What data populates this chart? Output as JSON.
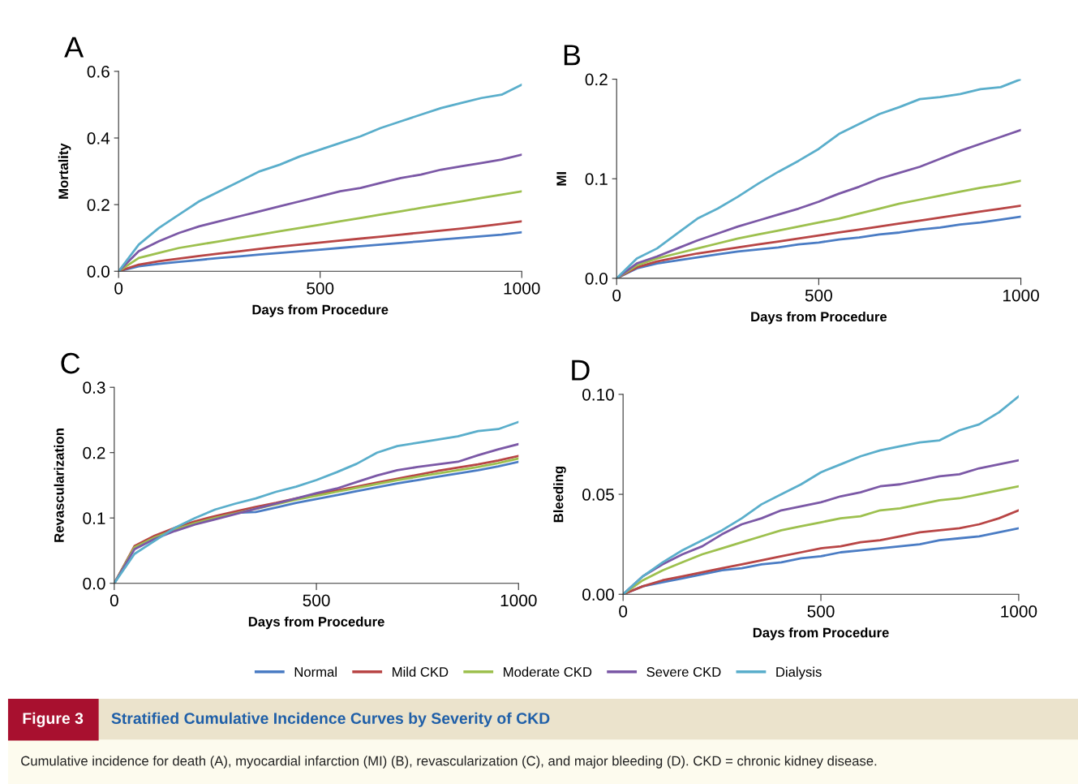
{
  "chart_data": [
    {
      "type": "line",
      "title": "A",
      "xlabel": "Days from Procedure",
      "ylabel": "Mortality",
      "xlim": [
        0,
        1000
      ],
      "ylim": [
        0,
        0.6
      ],
      "xticks": [
        0,
        500,
        1000
      ],
      "yticks": [
        {
          "value": 0,
          "label": "0.0"
        },
        {
          "value": 0.2,
          "label": "0.2"
        },
        {
          "value": 0.4,
          "label": "0.4"
        },
        {
          "value": 0.6,
          "label": "0.6"
        }
      ],
      "legend": "bottom",
      "x": [
        0,
        50,
        100,
        150,
        200,
        250,
        300,
        350,
        400,
        450,
        500,
        550,
        600,
        650,
        700,
        750,
        800,
        850,
        900,
        950,
        1000
      ],
      "series": [
        {
          "name": "Normal",
          "color": "#4a7cc4",
          "values": [
            0,
            0.015,
            0.022,
            0.028,
            0.034,
            0.04,
            0.045,
            0.05,
            0.055,
            0.06,
            0.065,
            0.07,
            0.075,
            0.08,
            0.085,
            0.09,
            0.095,
            0.1,
            0.105,
            0.11,
            0.117
          ]
        },
        {
          "name": "Mild CKD",
          "color": "#b84545",
          "values": [
            0,
            0.02,
            0.03,
            0.038,
            0.046,
            0.053,
            0.06,
            0.067,
            0.074,
            0.08,
            0.086,
            0.092,
            0.098,
            0.104,
            0.11,
            0.116,
            0.122,
            0.128,
            0.135,
            0.142,
            0.15
          ]
        },
        {
          "name": "Moderate CKD",
          "color": "#9dc04e",
          "values": [
            0,
            0.04,
            0.055,
            0.07,
            0.08,
            0.09,
            0.1,
            0.11,
            0.12,
            0.13,
            0.14,
            0.15,
            0.16,
            0.17,
            0.18,
            0.19,
            0.2,
            0.21,
            0.22,
            0.23,
            0.24
          ]
        },
        {
          "name": "Severe CKD",
          "color": "#7b58a6",
          "values": [
            0,
            0.06,
            0.09,
            0.115,
            0.135,
            0.15,
            0.165,
            0.18,
            0.195,
            0.21,
            0.225,
            0.24,
            0.25,
            0.265,
            0.28,
            0.29,
            0.305,
            0.315,
            0.325,
            0.335,
            0.35
          ]
        },
        {
          "name": "Dialysis",
          "color": "#5aaecb",
          "values": [
            0,
            0.08,
            0.13,
            0.17,
            0.21,
            0.24,
            0.27,
            0.3,
            0.32,
            0.345,
            0.365,
            0.385,
            0.405,
            0.43,
            0.45,
            0.47,
            0.49,
            0.505,
            0.52,
            0.53,
            0.56
          ]
        }
      ],
      "annotations": [
        "Figure 3",
        "Stratified Cumulative Incidence Curves by Severity of CKD",
        "Cumulative incidence for death (A), myocardial infarction (MI) (B), revascularization (C), and major bleeding (D). CKD = chronic kidney disease."
      ]
    },
    {
      "type": "line",
      "title": "B",
      "xlabel": "Days from Procedure",
      "ylabel": "MI",
      "xlim": [
        0,
        1000
      ],
      "ylim": [
        0,
        0.2
      ],
      "xticks": [
        0,
        500,
        1000
      ],
      "yticks": [
        {
          "value": 0,
          "label": "0.0"
        },
        {
          "value": 0.1,
          "label": "0.1"
        },
        {
          "value": 0.2,
          "label": "0.2"
        }
      ],
      "x": [
        0,
        50,
        100,
        150,
        200,
        250,
        300,
        350,
        400,
        450,
        500,
        550,
        600,
        650,
        700,
        750,
        800,
        850,
        900,
        950,
        1000
      ],
      "series": [
        {
          "color": "#4a7cc4",
          "values": [
            0,
            0.01,
            0.015,
            0.018,
            0.021,
            0.024,
            0.027,
            0.029,
            0.031,
            0.034,
            0.036,
            0.039,
            0.041,
            0.044,
            0.046,
            0.049,
            0.051,
            0.054,
            0.056,
            0.059,
            0.062
          ]
        },
        {
          "color": "#b84545",
          "values": [
            0,
            0.011,
            0.017,
            0.021,
            0.025,
            0.028,
            0.031,
            0.034,
            0.037,
            0.04,
            0.043,
            0.046,
            0.049,
            0.052,
            0.055,
            0.058,
            0.061,
            0.064,
            0.067,
            0.07,
            0.073
          ]
        },
        {
          "color": "#9dc04e",
          "values": [
            0,
            0.013,
            0.02,
            0.025,
            0.03,
            0.035,
            0.04,
            0.044,
            0.048,
            0.052,
            0.056,
            0.06,
            0.065,
            0.07,
            0.075,
            0.079,
            0.083,
            0.087,
            0.091,
            0.094,
            0.098
          ]
        },
        {
          "color": "#7b58a6",
          "values": [
            0,
            0.015,
            0.022,
            0.03,
            0.038,
            0.045,
            0.052,
            0.058,
            0.064,
            0.07,
            0.077,
            0.085,
            0.092,
            0.1,
            0.106,
            0.112,
            0.12,
            0.128,
            0.135,
            0.142,
            0.149
          ]
        },
        {
          "color": "#5aaecb",
          "values": [
            0,
            0.02,
            0.03,
            0.045,
            0.06,
            0.07,
            0.082,
            0.095,
            0.107,
            0.118,
            0.13,
            0.145,
            0.155,
            0.165,
            0.172,
            0.18,
            0.182,
            0.185,
            0.19,
            0.192,
            0.2
          ]
        }
      ]
    },
    {
      "type": "line",
      "title": "C",
      "xlabel": "Days from Procedure",
      "ylabel": "Revascularization",
      "xlim": [
        0,
        1000
      ],
      "ylim": [
        0,
        0.3
      ],
      "xticks": [
        0,
        500,
        1000
      ],
      "yticks": [
        {
          "value": 0,
          "label": "0.0"
        },
        {
          "value": 0.1,
          "label": "0.1"
        },
        {
          "value": 0.2,
          "label": "0.2"
        },
        {
          "value": 0.3,
          "label": "0.3"
        }
      ],
      "x": [
        0,
        50,
        100,
        150,
        200,
        250,
        300,
        350,
        400,
        450,
        500,
        550,
        600,
        650,
        700,
        750,
        800,
        850,
        900,
        950,
        1000
      ],
      "series": [
        {
          "color": "#4a7cc4",
          "values": [
            0,
            0.055,
            0.071,
            0.083,
            0.093,
            0.101,
            0.108,
            0.109,
            0.116,
            0.123,
            0.129,
            0.135,
            0.141,
            0.147,
            0.153,
            0.158,
            0.163,
            0.168,
            0.173,
            0.179,
            0.186
          ]
        },
        {
          "color": "#b84545",
          "values": [
            0,
            0.057,
            0.073,
            0.085,
            0.095,
            0.103,
            0.11,
            0.117,
            0.123,
            0.13,
            0.136,
            0.142,
            0.148,
            0.154,
            0.16,
            0.166,
            0.172,
            0.177,
            0.182,
            0.188,
            0.195
          ]
        },
        {
          "color": "#9dc04e",
          "values": [
            0,
            0.055,
            0.07,
            0.082,
            0.092,
            0.1,
            0.107,
            0.114,
            0.121,
            0.128,
            0.134,
            0.14,
            0.146,
            0.152,
            0.158,
            0.163,
            0.168,
            0.173,
            0.178,
            0.184,
            0.191
          ]
        },
        {
          "color": "#7b58a6",
          "values": [
            0,
            0.052,
            0.068,
            0.08,
            0.09,
            0.098,
            0.106,
            0.114,
            0.122,
            0.13,
            0.138,
            0.145,
            0.155,
            0.165,
            0.173,
            0.178,
            0.182,
            0.186,
            0.196,
            0.205,
            0.213
          ]
        },
        {
          "color": "#5aaecb",
          "values": [
            0,
            0.045,
            0.065,
            0.085,
            0.1,
            0.113,
            0.122,
            0.13,
            0.14,
            0.148,
            0.158,
            0.17,
            0.183,
            0.2,
            0.21,
            0.215,
            0.22,
            0.225,
            0.233,
            0.236,
            0.247
          ]
        }
      ]
    },
    {
      "type": "line",
      "title": "D",
      "xlabel": "Days from Procedure",
      "ylabel": "Bleeding",
      "xlim": [
        0,
        1000
      ],
      "ylim": [
        0,
        0.1
      ],
      "xticks": [
        0,
        500,
        1000
      ],
      "yticks": [
        {
          "value": 0,
          "label": "0.00"
        },
        {
          "value": 0.05,
          "label": "0.05"
        },
        {
          "value": 0.1,
          "label": "0.10"
        }
      ],
      "x": [
        0,
        50,
        100,
        150,
        200,
        250,
        300,
        350,
        400,
        450,
        500,
        550,
        600,
        650,
        700,
        750,
        800,
        850,
        900,
        950,
        1000
      ],
      "series": [
        {
          "color": "#4a7cc4",
          "values": [
            0,
            0.004,
            0.006,
            0.008,
            0.01,
            0.012,
            0.013,
            0.015,
            0.016,
            0.018,
            0.019,
            0.021,
            0.022,
            0.023,
            0.024,
            0.025,
            0.027,
            0.028,
            0.029,
            0.031,
            0.033
          ]
        },
        {
          "color": "#b84545",
          "values": [
            0,
            0.004,
            0.007,
            0.009,
            0.011,
            0.013,
            0.015,
            0.017,
            0.019,
            0.021,
            0.023,
            0.024,
            0.026,
            0.027,
            0.029,
            0.031,
            0.032,
            0.033,
            0.035,
            0.038,
            0.042
          ]
        },
        {
          "color": "#9dc04e",
          "values": [
            0,
            0.007,
            0.012,
            0.016,
            0.02,
            0.023,
            0.026,
            0.029,
            0.032,
            0.034,
            0.036,
            0.038,
            0.039,
            0.042,
            0.043,
            0.045,
            0.047,
            0.048,
            0.05,
            0.052,
            0.054
          ]
        },
        {
          "color": "#7b58a6",
          "values": [
            0,
            0.009,
            0.015,
            0.02,
            0.024,
            0.03,
            0.035,
            0.038,
            0.042,
            0.044,
            0.046,
            0.049,
            0.051,
            0.054,
            0.055,
            0.057,
            0.059,
            0.06,
            0.063,
            0.065,
            0.067
          ]
        },
        {
          "color": "#5aaecb",
          "values": [
            0,
            0.009,
            0.016,
            0.022,
            0.027,
            0.032,
            0.038,
            0.045,
            0.05,
            0.055,
            0.061,
            0.065,
            0.069,
            0.072,
            0.074,
            0.076,
            0.077,
            0.082,
            0.085,
            0.091,
            0.099
          ]
        }
      ]
    }
  ]
}
